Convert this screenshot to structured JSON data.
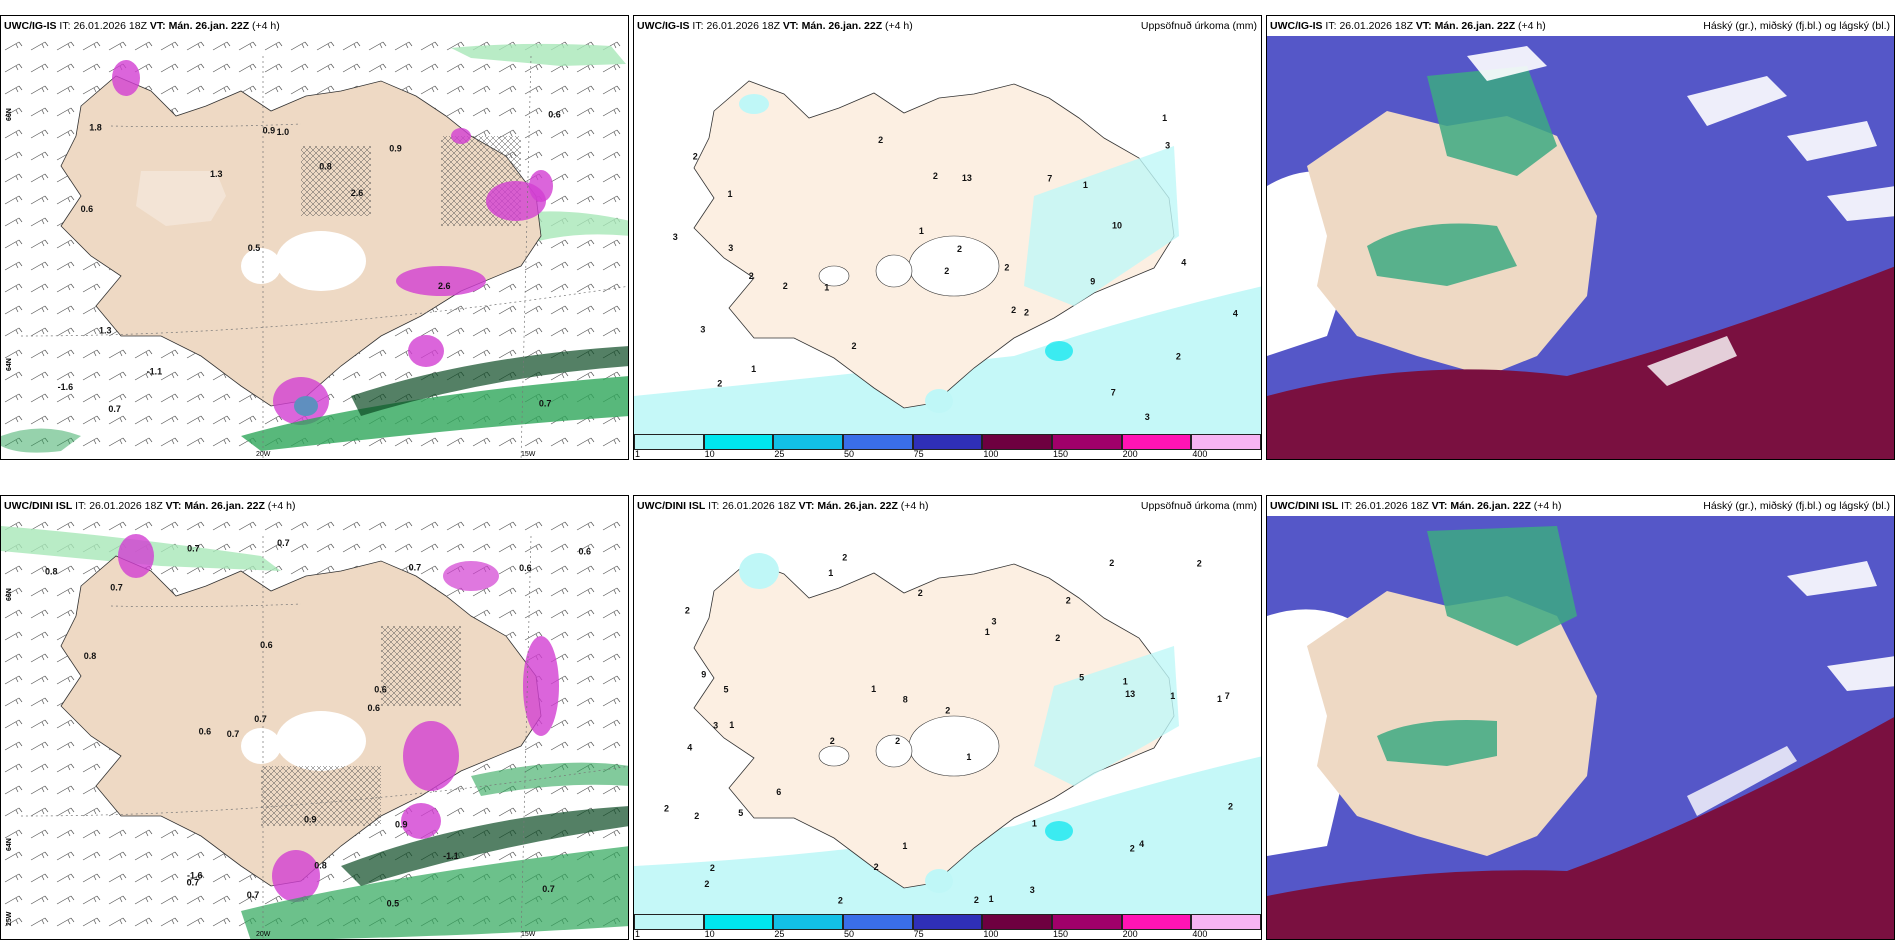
{
  "top_row": {
    "left": {
      "model": "UWC/IG-IS",
      "it_label": "IT:",
      "it_value": "26.01.2026 18Z",
      "vt_label": "VT:",
      "vt_value": "Mán. 26.jan. 22Z",
      "offset": "(+4 h)"
    },
    "center": {
      "model": "UWC/IG-IS",
      "it_label": "IT:",
      "it_value": "26.01.2026 18Z",
      "vt_label": "VT:",
      "vt_value": "Mán. 26.jan. 22Z",
      "offset": "(+4 h)",
      "title": "Uppsöfnuð úrkoma (mm)"
    },
    "right": {
      "model": "UWC/IG-IS",
      "it_label": "IT:",
      "it_value": "26.01.2026 18Z",
      "vt_label": "VT:",
      "vt_value": "Mán. 26.jan. 22Z",
      "offset": "(+4 h)",
      "title": "Háský (gr.), miðský (fj.bl.) og lágský (bl.)"
    }
  },
  "bottom_row": {
    "left": {
      "model": "UWC/DINI ISL",
      "it_label": "IT:",
      "it_value": "26.01.2026 18Z",
      "vt_label": "VT:",
      "vt_value": "Mán. 26.jan. 22Z",
      "offset": "(+4 h)"
    },
    "center": {
      "model": "UWC/DINI ISL",
      "it_label": "IT:",
      "it_value": "26.01.2026 18Z",
      "vt_label": "VT:",
      "vt_value": "Mán. 26.jan. 22Z",
      "offset": "(+4 h)",
      "title": "Uppsöfnuð úrkoma (mm)"
    },
    "right": {
      "model": "UWC/DINI ISL",
      "it_label": "IT:",
      "it_value": "26.01.2026 18Z",
      "vt_label": "VT:",
      "vt_value": "Mán. 26.jan. 22Z",
      "offset": "(+4 h)",
      "title": "Háský (gr.), miðský (fj.bl.) og lágský (bl.)"
    }
  },
  "grid_labels": {
    "lat_66": "66N",
    "lat_64": "64N",
    "lat_65w": "25W",
    "lon_20": "20W",
    "lon_15": "15W"
  },
  "precip_scale": {
    "ticks": [
      "1",
      "10",
      "25",
      "50",
      "75",
      "100",
      "150",
      "200",
      "400"
    ],
    "colors": [
      "#bff7f7",
      "#00e6ee",
      "#12bfe6",
      "#3a6ee8",
      "#2f2fb8",
      "#6e0040",
      "#a0006a",
      "#ff14b4",
      "#f7b4f2"
    ]
  },
  "top_left_labels": [
    "0.7",
    "0.6",
    "0.6",
    "0.5",
    "0.9",
    "0.7",
    "0.9",
    "0.8",
    "1.3",
    "1.3",
    "-1.6",
    "-1.1",
    "1.0",
    "2.6",
    "2.6",
    "1.8"
  ],
  "bottom_left_labels": [
    "0.7",
    "0.5",
    "-1.6",
    "-1.1",
    "0.7",
    "0.7",
    "0.6",
    "0.7",
    "0.7",
    "0.6",
    "0.6",
    "0.8",
    "0.7",
    "0.9",
    "0.7",
    "0.6",
    "0.8",
    "0.7",
    "0.7",
    "0.8",
    "0.9",
    "0.6",
    "0.6"
  ],
  "top_center_labels": [
    "3",
    "2",
    "2",
    "2",
    "2",
    "1",
    "1",
    "1",
    "1",
    "2",
    "7",
    "7",
    "2",
    "2",
    "2",
    "3",
    "9",
    "2",
    "3",
    "2",
    "1",
    "13",
    "10",
    "4",
    "4",
    "3",
    "2",
    "2",
    "1",
    "3",
    "2"
  ],
  "bottom_center_labels": [
    "2",
    "2",
    "1",
    "2",
    "1",
    "1",
    "2",
    "2",
    "4",
    "1",
    "2",
    "2",
    "1",
    "2",
    "2",
    "1",
    "1",
    "2",
    "5",
    "6",
    "5",
    "3",
    "7",
    "1",
    "2",
    "9",
    "8",
    "13",
    "4",
    "2",
    "2",
    "3",
    "5",
    "1",
    "1",
    "2",
    "1",
    "2",
    "2",
    "2",
    "2",
    "2",
    "3"
  ],
  "colors": {
    "land": "#eed9c4",
    "land_light": "#fcefe2",
    "sea": "#ffffff",
    "green": "#2ea65a",
    "dark_green": "#0b4a24",
    "pink": "#d23fd2",
    "cyan": "#9ff5f5",
    "cloud_blue": "#5557c8",
    "cloud_dark": "#7a1040",
    "cloud_green": "#4ab486"
  }
}
